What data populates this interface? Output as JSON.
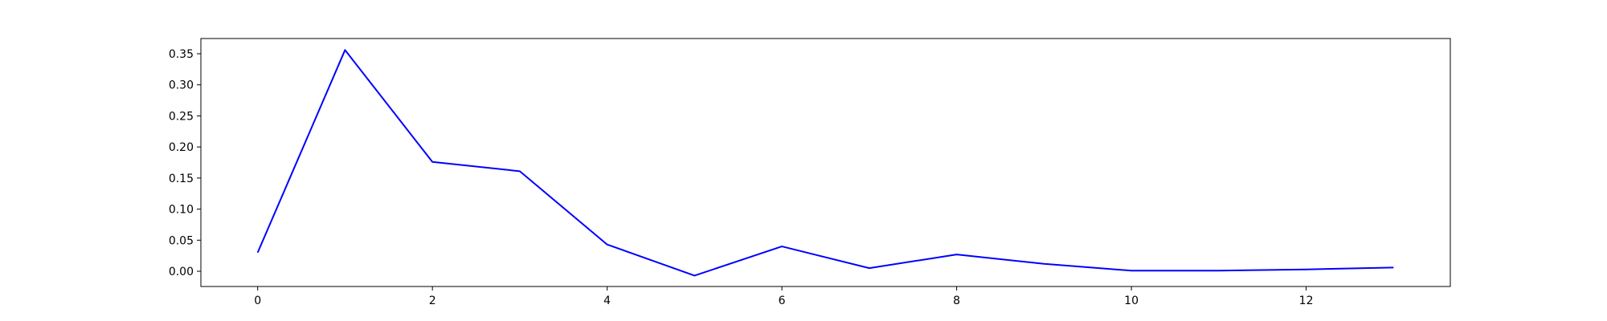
{
  "chart_data": {
    "type": "line",
    "x": [
      0,
      1,
      2,
      3,
      4,
      5,
      6,
      7,
      8,
      9,
      10,
      11,
      12,
      13
    ],
    "series": [
      {
        "values": [
          0.03,
          0.356,
          0.176,
          0.161,
          0.043,
          -0.007,
          0.04,
          0.005,
          0.027,
          0.012,
          0.001,
          0.001,
          0.003,
          0.006
        ],
        "color": "#0000ff"
      }
    ],
    "title": "",
    "xlabel": "",
    "ylabel": "",
    "xlim": [
      -0.65,
      13.65
    ],
    "ylim": [
      -0.0245,
      0.3745
    ],
    "xticks": [
      0,
      2,
      4,
      6,
      8,
      10,
      12
    ],
    "xtick_labels": [
      "0",
      "2",
      "4",
      "6",
      "8",
      "10",
      "12"
    ],
    "yticks": [
      0.0,
      0.05,
      0.1,
      0.15,
      0.2,
      0.25,
      0.3,
      0.35
    ],
    "ytick_labels": [
      "0.00",
      "0.05",
      "0.10",
      "0.15",
      "0.20",
      "0.25",
      "0.30",
      "0.35"
    ],
    "grid": false,
    "legend": "none"
  }
}
